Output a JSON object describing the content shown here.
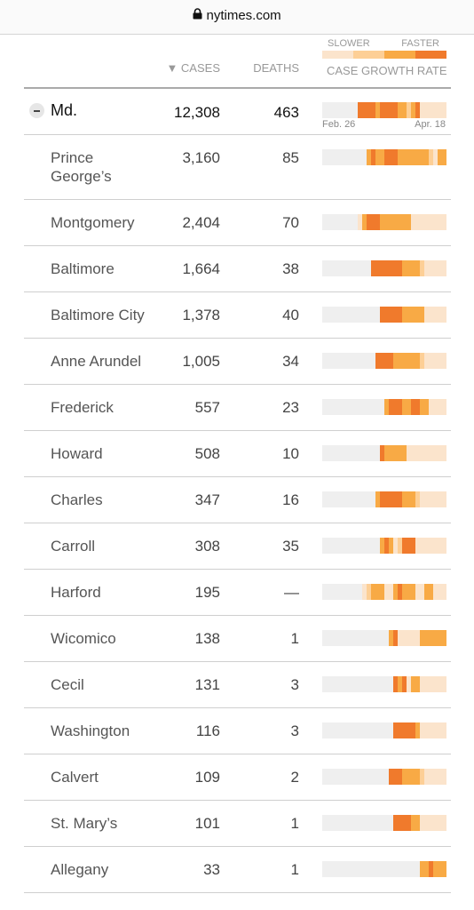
{
  "url": "nytimes.com",
  "header": {
    "cases": "▼ CASES",
    "deaths": "DEATHS",
    "slower": "SLOWER",
    "faster": "FASTER",
    "rate_label": "CASE GROWTH RATE"
  },
  "level_colors": [
    "#efefef",
    "#fbe4cc",
    "#fdcf96",
    "#f8aa45",
    "#f07a2c"
  ],
  "state": {
    "name": "Md.",
    "cases": "12,308",
    "deaths": "463",
    "start": "Feb. 26",
    "end": "Apr. 18",
    "growth": [
      0,
      0,
      0,
      0,
      0,
      0,
      0,
      0,
      4,
      4,
      4,
      4,
      3,
      4,
      4,
      4,
      4,
      3,
      3,
      2,
      3,
      4,
      1,
      1,
      1,
      1,
      1,
      1
    ]
  },
  "rows": [
    {
      "name": "Prince George’s",
      "cases": "3,160",
      "deaths": "85",
      "growth": [
        0,
        0,
        0,
        0,
        0,
        0,
        0,
        0,
        0,
        0,
        3,
        4,
        3,
        3,
        4,
        4,
        4,
        3,
        3,
        3,
        3,
        3,
        3,
        3,
        2,
        1,
        3,
        3
      ]
    },
    {
      "name": "Montgomery",
      "cases": "2,404",
      "deaths": "70",
      "growth": [
        0,
        0,
        0,
        0,
        0,
        0,
        0,
        0,
        1,
        3,
        4,
        4,
        4,
        3,
        3,
        3,
        3,
        3,
        3,
        3,
        1,
        1,
        1,
        1,
        1,
        1,
        1,
        1
      ]
    },
    {
      "name": "Baltimore",
      "cases": "1,664",
      "deaths": "38",
      "growth": [
        0,
        0,
        0,
        0,
        0,
        0,
        0,
        0,
        0,
        0,
        0,
        4,
        4,
        4,
        4,
        4,
        4,
        4,
        3,
        3,
        3,
        3,
        2,
        1,
        1,
        1,
        1,
        1
      ]
    },
    {
      "name": "Baltimore City",
      "cases": "1,378",
      "deaths": "40",
      "growth": [
        0,
        0,
        0,
        0,
        0,
        0,
        0,
        0,
        0,
        0,
        0,
        0,
        0,
        4,
        4,
        4,
        4,
        4,
        3,
        3,
        3,
        3,
        3,
        1,
        1,
        1,
        1,
        1
      ]
    },
    {
      "name": "Anne Arundel",
      "cases": "1,005",
      "deaths": "34",
      "growth": [
        0,
        0,
        0,
        0,
        0,
        0,
        0,
        0,
        0,
        0,
        0,
        0,
        4,
        4,
        4,
        4,
        3,
        3,
        3,
        3,
        3,
        3,
        2,
        1,
        1,
        1,
        1,
        1
      ]
    },
    {
      "name": "Frederick",
      "cases": "557",
      "deaths": "23",
      "growth": [
        0,
        0,
        0,
        0,
        0,
        0,
        0,
        0,
        0,
        0,
        0,
        0,
        0,
        0,
        3,
        4,
        4,
        4,
        3,
        3,
        4,
        4,
        3,
        3,
        1,
        1,
        1,
        1
      ]
    },
    {
      "name": "Howard",
      "cases": "508",
      "deaths": "10",
      "growth": [
        0,
        0,
        0,
        0,
        0,
        0,
        0,
        0,
        0,
        0,
        0,
        0,
        0,
        4,
        3,
        3,
        3,
        3,
        3,
        1,
        1,
        1,
        1,
        1,
        1,
        1,
        1,
        1
      ]
    },
    {
      "name": "Charles",
      "cases": "347",
      "deaths": "16",
      "growth": [
        0,
        0,
        0,
        0,
        0,
        0,
        0,
        0,
        0,
        0,
        0,
        0,
        3,
        4,
        4,
        4,
        4,
        4,
        3,
        3,
        3,
        2,
        1,
        1,
        1,
        1,
        1,
        1
      ]
    },
    {
      "name": "Carroll",
      "cases": "308",
      "deaths": "35",
      "growth": [
        0,
        0,
        0,
        0,
        0,
        0,
        0,
        0,
        0,
        0,
        0,
        0,
        0,
        3,
        4,
        3,
        1,
        2,
        4,
        4,
        4,
        1,
        1,
        1,
        1,
        1,
        1,
        1
      ]
    },
    {
      "name": "Harford",
      "cases": "195",
      "deaths": "—",
      "growth": [
        0,
        0,
        0,
        0,
        0,
        0,
        0,
        0,
        0,
        1,
        2,
        3,
        3,
        3,
        1,
        1,
        3,
        4,
        3,
        3,
        3,
        1,
        1,
        3,
        3,
        1,
        1,
        1
      ]
    },
    {
      "name": "Wicomico",
      "cases": "138",
      "deaths": "1",
      "growth": [
        0,
        0,
        0,
        0,
        0,
        0,
        0,
        0,
        0,
        0,
        0,
        0,
        0,
        0,
        0,
        3,
        4,
        1,
        1,
        1,
        1,
        1,
        3,
        3,
        3,
        3,
        3,
        3
      ]
    },
    {
      "name": "Cecil",
      "cases": "131",
      "deaths": "3",
      "growth": [
        0,
        0,
        0,
        0,
        0,
        0,
        0,
        0,
        0,
        0,
        0,
        0,
        0,
        0,
        0,
        0,
        4,
        3,
        4,
        1,
        3,
        3,
        1,
        1,
        1,
        1,
        1,
        1
      ]
    },
    {
      "name": "Washington",
      "cases": "116",
      "deaths": "3",
      "growth": [
        0,
        0,
        0,
        0,
        0,
        0,
        0,
        0,
        0,
        0,
        0,
        0,
        0,
        0,
        0,
        0,
        4,
        4,
        4,
        4,
        4,
        3,
        1,
        1,
        1,
        1,
        1,
        1
      ]
    },
    {
      "name": "Calvert",
      "cases": "109",
      "deaths": "2",
      "growth": [
        0,
        0,
        0,
        0,
        0,
        0,
        0,
        0,
        0,
        0,
        0,
        0,
        0,
        0,
        0,
        4,
        4,
        4,
        3,
        3,
        3,
        3,
        2,
        1,
        1,
        1,
        1,
        1
      ]
    },
    {
      "name": "St. Mary’s",
      "cases": "101",
      "deaths": "1",
      "growth": [
        0,
        0,
        0,
        0,
        0,
        0,
        0,
        0,
        0,
        0,
        0,
        0,
        0,
        0,
        0,
        0,
        4,
        4,
        4,
        4,
        3,
        3,
        1,
        1,
        1,
        1,
        1,
        1
      ]
    },
    {
      "name": "Allegany",
      "cases": "33",
      "deaths": "1",
      "growth": [
        0,
        0,
        0,
        0,
        0,
        0,
        0,
        0,
        0,
        0,
        0,
        0,
        0,
        0,
        0,
        0,
        0,
        0,
        0,
        0,
        0,
        0,
        3,
        3,
        4,
        3,
        3,
        3
      ]
    }
  ]
}
